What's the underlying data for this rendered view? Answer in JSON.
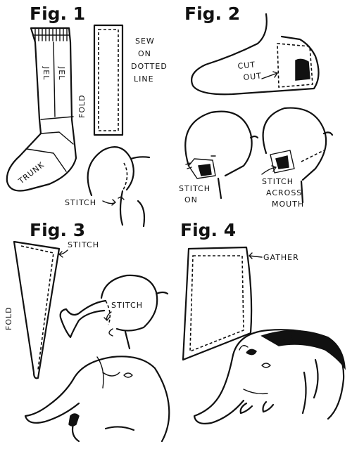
{
  "figures": {
    "fig1": {
      "title": "Fig. 1",
      "sock_labels": [
        "JEL",
        "JEL",
        "TRUNK"
      ],
      "fold_label": "FOLD",
      "sew_note": [
        "SEW",
        "ON",
        "DOTTED",
        "LINE"
      ],
      "stitch_label": "STITCH"
    },
    "fig2": {
      "title": "Fig. 2",
      "cut_out_label": [
        "CUT",
        "OUT"
      ],
      "stitch_on_label": [
        "STITCH",
        "ON"
      ],
      "stitch_mouth_label": [
        "STITCH",
        "ACROSS",
        "MOUTH"
      ]
    },
    "fig3": {
      "title": "Fig. 3",
      "stitch_label_top": "STITCH",
      "fold_label": "FOLD",
      "stitch_label_head": "STITCH"
    },
    "fig4": {
      "title": "Fig. 4",
      "gather_label": "GATHER"
    }
  },
  "colors": {
    "ink": "#111111",
    "paper": "#ffffff"
  }
}
